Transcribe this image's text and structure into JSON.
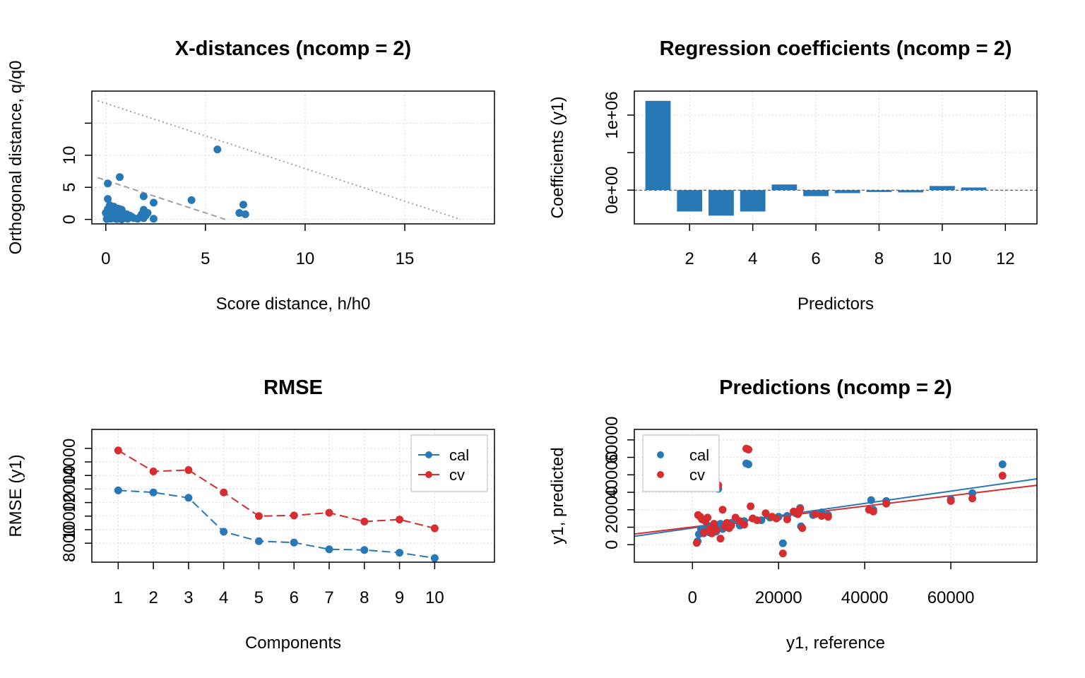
{
  "colors": {
    "cal": "#2878B5",
    "cv": "#D62D30",
    "grid": "#D9D9D9",
    "limit": "#A0A0A0"
  },
  "chart_data": [
    {
      "id": "xdist",
      "type": "scatter",
      "title": "X-distances (ncomp = 2)",
      "xlabel": "Score distance, h/h0",
      "ylabel": "Orthogonal distance, q/q0",
      "xlim": [
        -0.7,
        19.5
      ],
      "ylim": [
        -0.7,
        20
      ],
      "xticks": [
        0,
        5,
        10,
        15
      ],
      "yticks": [
        0,
        5,
        10
      ],
      "yticks_minor": [
        15
      ],
      "grid": true,
      "limit_lines": [
        {
          "style": "dashed",
          "x": [
            -0.4,
            6.0
          ],
          "y": [
            6.5,
            0
          ]
        },
        {
          "style": "dotted",
          "x": [
            -0.4,
            17.8
          ],
          "y": [
            18.5,
            0
          ]
        }
      ],
      "points": [
        [
          0.1,
          5.6
        ],
        [
          0.7,
          6.6
        ],
        [
          0.1,
          3.2
        ],
        [
          0.2,
          2.2
        ],
        [
          0.4,
          2.0
        ],
        [
          0.1,
          1.6
        ],
        [
          0.2,
          1.4
        ],
        [
          0.3,
          1.2
        ],
        [
          0.5,
          1.0
        ],
        [
          0.6,
          1.7
        ],
        [
          0.7,
          1.6
        ],
        [
          0.8,
          1.5
        ],
        [
          0.9,
          0.9
        ],
        [
          0.0,
          1.0
        ],
        [
          0.1,
          0.7
        ],
        [
          0.2,
          0.5
        ],
        [
          0.3,
          0.4
        ],
        [
          0.4,
          0.2
        ],
        [
          0.5,
          0.1
        ],
        [
          0.6,
          0.3
        ],
        [
          0.7,
          0.1
        ],
        [
          0.8,
          0.0
        ],
        [
          0.9,
          0.2
        ],
        [
          1.0,
          0.3
        ],
        [
          1.1,
          0.1
        ],
        [
          1.2,
          0.6
        ],
        [
          1.4,
          0.2
        ],
        [
          1.6,
          0.1
        ],
        [
          0.05,
          0.05
        ],
        [
          0.15,
          0.2
        ],
        [
          0.25,
          0.1
        ],
        [
          0.35,
          0.6
        ],
        [
          0.45,
          0.8
        ],
        [
          0.55,
          0.05
        ],
        [
          0.65,
          0.4
        ],
        [
          0.75,
          0.6
        ],
        [
          0.85,
          0.3
        ],
        [
          0.95,
          0.5
        ],
        [
          1.05,
          0.8
        ],
        [
          1.3,
          0.4
        ],
        [
          0.3,
          1.8
        ],
        [
          0.4,
          1.3
        ],
        [
          1.9,
          1.5
        ],
        [
          1.8,
          0.8
        ],
        [
          1.9,
          0.2
        ],
        [
          2.0,
          0.6
        ],
        [
          2.1,
          1.0
        ],
        [
          1.7,
          0.3
        ],
        [
          1.9,
          3.6
        ],
        [
          2.4,
          2.6
        ],
        [
          2.4,
          0.1
        ],
        [
          4.3,
          3.0
        ],
        [
          5.6,
          10.9
        ],
        [
          6.7,
          1.0
        ],
        [
          6.9,
          2.3
        ],
        [
          7.0,
          0.8
        ]
      ]
    },
    {
      "id": "coeffs",
      "type": "bar",
      "title": "Regression coefficients (ncomp = 2)",
      "xlabel": "Predictors",
      "ylabel": "Coefficients (y1)",
      "xlim": [
        0.25,
        13.0
      ],
      "ylim": [
        -450000,
        1320000
      ],
      "xticks": [
        2,
        4,
        6,
        8,
        10,
        12
      ],
      "yticks": [
        0,
        1000000
      ],
      "ytick_labels": [
        "0e+00",
        "1e+06"
      ],
      "yticks_minor": [
        500000
      ],
      "grid": true,
      "zero_line": true,
      "categories": [
        1,
        2,
        3,
        4,
        5,
        6,
        7,
        8,
        9,
        10,
        11
      ],
      "values": [
        1190000,
        -285000,
        -340000,
        -285000,
        75000,
        -80000,
        -40000,
        -25000,
        -30000,
        55000,
        35000
      ]
    },
    {
      "id": "rmse",
      "type": "line",
      "title": "RMSE",
      "xlabel": "Components",
      "ylabel": "RMSE (y1)",
      "xlim": [
        0.25,
        11.7
      ],
      "ylim": [
        6600,
        16400
      ],
      "xticks": [
        1,
        2,
        3,
        4,
        5,
        6,
        7,
        8,
        9,
        10
      ],
      "yticks": [
        8000,
        10000,
        12000,
        14000
      ],
      "yticks_minor": [
        9000,
        11000,
        13000,
        15000
      ],
      "grid": true,
      "legend": {
        "position": "top-right",
        "entries": [
          "cal",
          "cv"
        ]
      },
      "x": [
        1,
        2,
        3,
        4,
        5,
        6,
        7,
        8,
        9,
        10
      ],
      "series": [
        {
          "name": "cal",
          "values": [
            11900,
            11750,
            11350,
            8850,
            8150,
            8050,
            7550,
            7500,
            7300,
            6900
          ]
        },
        {
          "name": "cv",
          "values": [
            14850,
            13300,
            13400,
            11750,
            10000,
            10050,
            10250,
            9600,
            9750,
            9100
          ]
        }
      ]
    },
    {
      "id": "predictions",
      "type": "scatter",
      "title": "Predictions (ncomp = 2)",
      "xlabel": "y1, reference",
      "ylabel": "y1, predicted",
      "xlim": [
        -13500,
        80000
      ],
      "ylim": [
        -10000,
        66000
      ],
      "xticks": [
        0,
        20000,
        40000,
        60000
      ],
      "yticks": [
        0,
        20000,
        40000,
        60000
      ],
      "yticks_minor": [
        10000,
        30000,
        50000
      ],
      "grid": true,
      "legend": {
        "position": "top-left",
        "entries": [
          "cal",
          "cv"
        ]
      },
      "fit_lines": [
        {
          "name": "cal",
          "x": [
            -13500,
            80000
          ],
          "y": [
            4800,
            37700
          ]
        },
        {
          "name": "cv",
          "x": [
            -13500,
            80000
          ],
          "y": [
            6100,
            34000
          ]
        }
      ],
      "series": [
        {
          "name": "cal",
          "points": [
            [
              1200,
              2000
            ],
            [
              1500,
              6000
            ],
            [
              2000,
              9000
            ],
            [
              2600,
              6500
            ],
            [
              3000,
              8000
            ],
            [
              3500,
              11000
            ],
            [
              4000,
              7000
            ],
            [
              4500,
              9500
            ],
            [
              5000,
              10500
            ],
            [
              5500,
              7500
            ],
            [
              6000,
              32000
            ],
            [
              6500,
              12000
            ],
            [
              7000,
              9000
            ],
            [
              7500,
              11500
            ],
            [
              8000,
              10000
            ],
            [
              9000,
              12500
            ],
            [
              10000,
              14000
            ],
            [
              11000,
              11000
            ],
            [
              12000,
              13500
            ],
            [
              13000,
              46000
            ],
            [
              12500,
              46500
            ],
            [
              14000,
              15000
            ],
            [
              16000,
              14000
            ],
            [
              18000,
              15500
            ],
            [
              20000,
              16000
            ],
            [
              21000,
              800
            ],
            [
              22000,
              16500
            ],
            [
              24000,
              18000
            ],
            [
              25000,
              21000
            ],
            [
              25200,
              10500
            ],
            [
              28000,
              17000
            ],
            [
              30000,
              18500
            ],
            [
              31500,
              17000
            ],
            [
              41500,
              25500
            ],
            [
              42000,
              20000
            ],
            [
              45000,
              25000
            ],
            [
              60000,
              26000
            ],
            [
              65000,
              29500
            ],
            [
              72000,
              46000
            ]
          ]
        },
        {
          "name": "cv",
          "points": [
            [
              1000,
              1000
            ],
            [
              1300,
              17000
            ],
            [
              1800,
              16000
            ],
            [
              2200,
              14500
            ],
            [
              2600,
              7000
            ],
            [
              3000,
              13500
            ],
            [
              3500,
              15500
            ],
            [
              4000,
              9000
            ],
            [
              4500,
              6500
            ],
            [
              5000,
              12000
            ],
            [
              5500,
              8500
            ],
            [
              6000,
              34000
            ],
            [
              6500,
              3500
            ],
            [
              7000,
              20000
            ],
            [
              7500,
              10500
            ],
            [
              8000,
              12500
            ],
            [
              8500,
              9500
            ],
            [
              9000,
              11000
            ],
            [
              10000,
              15500
            ],
            [
              11000,
              13500
            ],
            [
              12000,
              11500
            ],
            [
              12500,
              55000
            ],
            [
              13000,
              54500
            ],
            [
              13500,
              22000
            ],
            [
              14000,
              15000
            ],
            [
              15000,
              14000
            ],
            [
              17000,
              18000
            ],
            [
              18500,
              16000
            ],
            [
              19500,
              15000
            ],
            [
              21000,
              -5000
            ],
            [
              22000,
              14500
            ],
            [
              23500,
              19000
            ],
            [
              24500,
              17500
            ],
            [
              25000,
              20500
            ],
            [
              25500,
              9500
            ],
            [
              28500,
              17500
            ],
            [
              30000,
              16500
            ],
            [
              31500,
              16000
            ],
            [
              41000,
              20000
            ],
            [
              42000,
              19000
            ],
            [
              45000,
              23500
            ],
            [
              60000,
              25000
            ],
            [
              65000,
              26500
            ],
            [
              72000,
              39500
            ]
          ]
        }
      ]
    }
  ]
}
